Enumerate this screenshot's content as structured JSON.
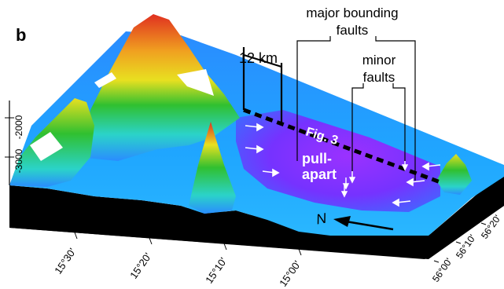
{
  "panel_label": "b",
  "annotations": {
    "major_faults_line1": "major bounding",
    "major_faults_line2": "faults",
    "minor_faults_line1": "minor",
    "minor_faults_line2": "faults",
    "scale_bar": "12 km",
    "fig_ref": "Fig. 3",
    "pull_apart_line1": "pull-",
    "pull_apart_line2": "apart",
    "north": "N"
  },
  "depth_axis": {
    "ticks": [
      "-2000",
      "-3000"
    ]
  },
  "longitude_labels": [
    "15°30'",
    "15°20'",
    "15°10'",
    "15°00'"
  ],
  "latitude_labels": [
    "56°20'",
    "56°10'",
    "56°00'"
  ],
  "colors": {
    "deep": "#8a2be2",
    "mid_deep": "#2a7fff",
    "mid": "#2bd3c9",
    "shallow": "#30c030",
    "shallower": "#e8e020",
    "peak": "#e03020",
    "base": "#000000"
  }
}
